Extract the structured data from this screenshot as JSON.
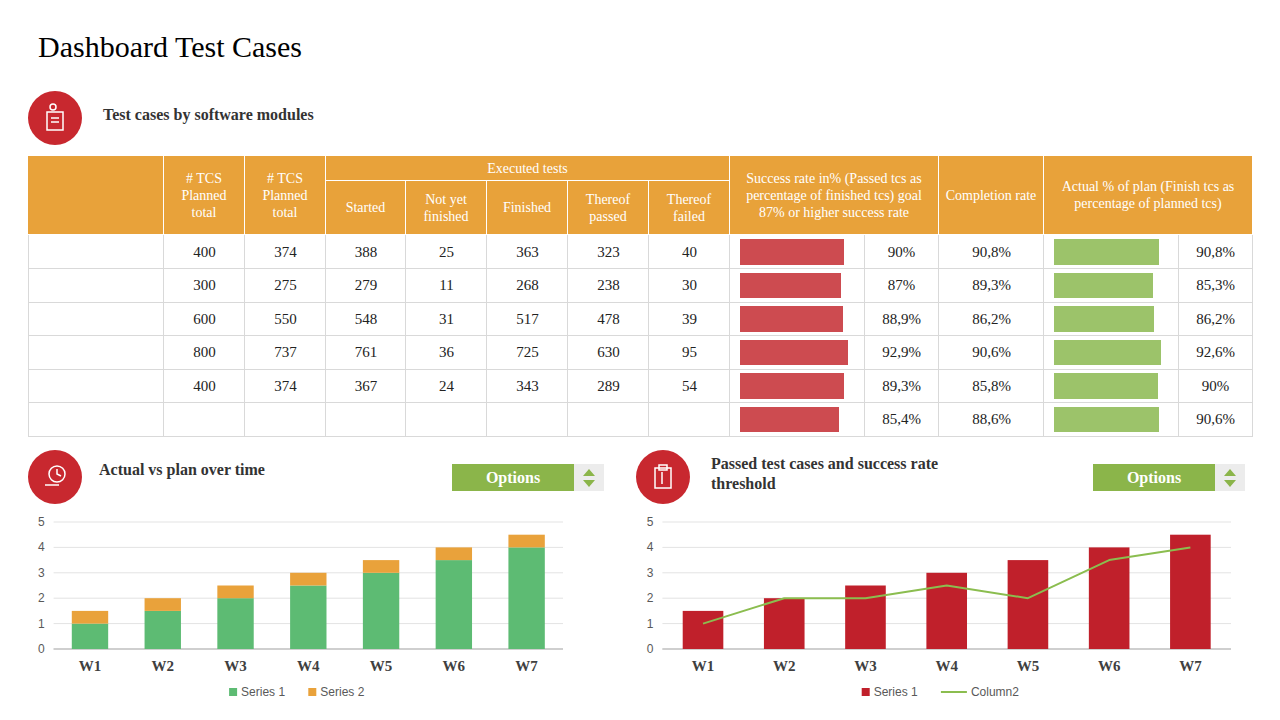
{
  "header": {
    "title": "Dashboard Test Cases"
  },
  "table": {
    "title": "Test cases by software modules",
    "bar_scale": [
      0,
      100
    ],
    "header": [
      {
        "label": null
      },
      {
        "label": "# TCS Planned total"
      },
      {
        "label": "# TCS Planned total"
      },
      {
        "label": "Executed tests",
        "children": [
          "Started",
          "Not yet finished",
          "Finished",
          "Thereof passed",
          "Thereof failed"
        ]
      },
      {
        "label": "Success rate in% (Passed tcs as percentage of finished tcs) goal 87% or higher success rate",
        "color": "#cd4b50"
      },
      {
        "label": "Completion rate"
      },
      {
        "label": "Actual % of plan (Finish tcs as percentage of planned tcs)",
        "color": "#9cc36a"
      }
    ],
    "rows": [
      [
        null,
        400,
        374,
        388,
        25,
        363,
        323,
        40,
        {
          "value": 90,
          "label": "90%"
        },
        "90,8%",
        {
          "value": 90.8,
          "label": "90,8%"
        }
      ],
      [
        null,
        300,
        275,
        279,
        11,
        268,
        238,
        30,
        {
          "value": 87,
          "label": "87%"
        },
        "89,3%",
        {
          "value": 85.3,
          "label": "85,3%"
        }
      ],
      [
        null,
        600,
        550,
        548,
        31,
        517,
        478,
        39,
        {
          "value": 88.9,
          "label": "88,9%"
        },
        "86,2%",
        {
          "value": 86.2,
          "label": "86,2%"
        }
      ],
      [
        null,
        800,
        737,
        761,
        36,
        725,
        630,
        95,
        {
          "value": 92.9,
          "label": "92,9%"
        },
        "90,6%",
        {
          "value": 92.6,
          "label": "92,6%"
        }
      ],
      [
        null,
        400,
        374,
        367,
        24,
        343,
        289,
        54,
        {
          "value": 89.3,
          "label": "89,3%"
        },
        "85,8%",
        {
          "value": 90,
          "label": "90%"
        }
      ],
      [
        null,
        null,
        null,
        null,
        null,
        null,
        null,
        null,
        {
          "value": 85.4,
          "label": "85,4%"
        },
        "88,6%",
        {
          "value": 90.6,
          "label": "90,6%"
        }
      ]
    ]
  },
  "chart_data": [
    {
      "type": "bar",
      "stacked": true,
      "title": "Actual vs plan over time",
      "button": "Options",
      "categories": [
        "W1",
        "W2",
        "W3",
        "W4",
        "W5",
        "W6",
        "W7"
      ],
      "series": [
        {
          "name": "Series 1",
          "color": "#5dbb73",
          "values": [
            1,
            1.5,
            2,
            2.5,
            3,
            3.5,
            4
          ]
        },
        {
          "name": "Series 2",
          "color": "#e9a23b",
          "values": [
            0.5,
            0.5,
            0.5,
            0.5,
            0.5,
            0.5,
            0.5
          ]
        }
      ],
      "ylim": [
        0,
        5
      ],
      "yticks": [
        0,
        1,
        2,
        3,
        4,
        5
      ],
      "grid": true,
      "legend": "bottom"
    },
    {
      "type": "bar",
      "title": "Passed test cases and success rate threshold",
      "button": "Options",
      "categories": [
        "W1",
        "W2",
        "W3",
        "W4",
        "W5",
        "W6",
        "W7"
      ],
      "series": [
        {
          "name": "Series 1",
          "type": "bar",
          "color": "#c0202b",
          "values": [
            1.5,
            2,
            2.5,
            3,
            3.5,
            4,
            4.5
          ]
        },
        {
          "name": "Column2",
          "type": "line",
          "color": "#8bbd4f",
          "values": [
            1,
            2,
            2,
            2.5,
            2,
            3.5,
            4
          ]
        }
      ],
      "ylim": [
        0,
        5
      ],
      "yticks": [
        0,
        1,
        2,
        3,
        4,
        5
      ],
      "grid": true,
      "legend": "bottom"
    }
  ]
}
